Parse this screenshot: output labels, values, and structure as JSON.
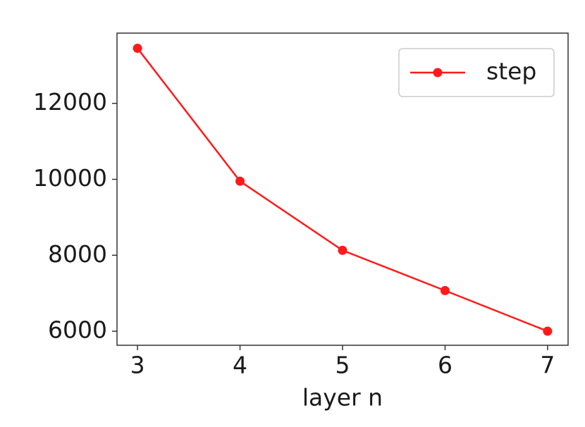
{
  "chart_data": {
    "type": "line",
    "x_label": "layer n",
    "x": [
      3,
      4,
      5,
      6,
      7
    ],
    "series": [
      {
        "name": "step",
        "color": "#ff1a1a",
        "values": [
          13450,
          9950,
          8130,
          7070,
          6000
        ]
      }
    ],
    "xlim": [
      2.8,
      7.2
    ],
    "xticks": [
      3,
      4,
      5,
      6,
      7
    ],
    "ylim": [
      5630,
      13850
    ],
    "yticks": [
      6000,
      8000,
      10000,
      12000
    ],
    "grid": false,
    "legend": "upper right"
  }
}
